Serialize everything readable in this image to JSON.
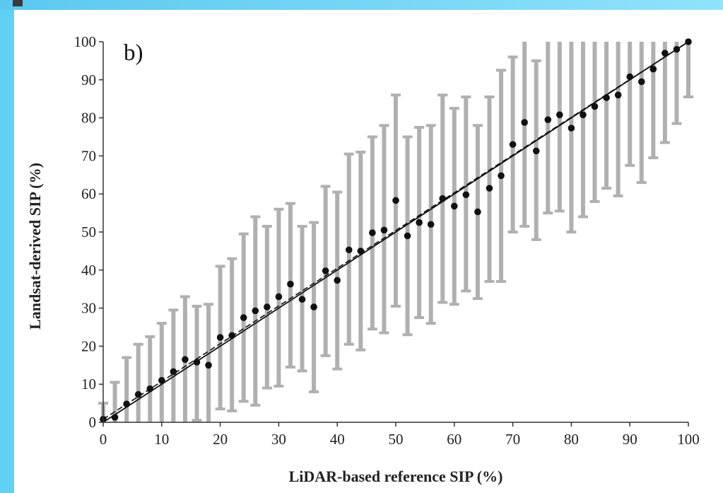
{
  "chart_data": {
    "type": "scatter",
    "panel_label": "b)",
    "xlabel": "LiDAR-based reference SIP (%)",
    "ylabel": "Landsat-derived SIP (%)",
    "xlim": [
      0,
      100
    ],
    "ylim": [
      0,
      100
    ],
    "x_ticks": [
      "0",
      "10",
      "20",
      "30",
      "40",
      "50",
      "60",
      "70",
      "80",
      "90",
      "100"
    ],
    "y_ticks": [
      "0",
      "10",
      "20",
      "30",
      "40",
      "50",
      "60",
      "70",
      "80",
      "90",
      "100"
    ],
    "grid": false,
    "points": [
      {
        "x": 0,
        "y": 0.8,
        "lo": 0,
        "hi": 5
      },
      {
        "x": 2,
        "y": 1.3,
        "lo": 0,
        "hi": 10.5
      },
      {
        "x": 4,
        "y": 4.8,
        "lo": 0,
        "hi": 17
      },
      {
        "x": 6,
        "y": 7.3,
        "lo": 0,
        "hi": 20.5
      },
      {
        "x": 8,
        "y": 8.8,
        "lo": 0,
        "hi": 22.5
      },
      {
        "x": 10,
        "y": 11,
        "lo": 0,
        "hi": 26
      },
      {
        "x": 12,
        "y": 13.3,
        "lo": 0,
        "hi": 29.5
      },
      {
        "x": 14,
        "y": 16.5,
        "lo": 0,
        "hi": 33
      },
      {
        "x": 16,
        "y": 15.8,
        "lo": 0.5,
        "hi": 30.5
      },
      {
        "x": 18,
        "y": 15,
        "lo": 0,
        "hi": 31
      },
      {
        "x": 20,
        "y": 22.3,
        "lo": 3.5,
        "hi": 41
      },
      {
        "x": 22,
        "y": 22.8,
        "lo": 3,
        "hi": 43
      },
      {
        "x": 24,
        "y": 27.5,
        "lo": 5.5,
        "hi": 49.5
      },
      {
        "x": 26,
        "y": 29.3,
        "lo": 4.5,
        "hi": 54
      },
      {
        "x": 28,
        "y": 30.3,
        "lo": 9,
        "hi": 51.5
      },
      {
        "x": 30,
        "y": 33,
        "lo": 9.5,
        "hi": 56
      },
      {
        "x": 32,
        "y": 36.3,
        "lo": 14.5,
        "hi": 57.5
      },
      {
        "x": 34,
        "y": 32.3,
        "lo": 13.5,
        "hi": 51.5
      },
      {
        "x": 36,
        "y": 30.3,
        "lo": 8,
        "hi": 52.5
      },
      {
        "x": 38,
        "y": 39.8,
        "lo": 17.5,
        "hi": 62
      },
      {
        "x": 40,
        "y": 37.3,
        "lo": 14,
        "hi": 60.5
      },
      {
        "x": 42,
        "y": 45.3,
        "lo": 20.5,
        "hi": 70.5
      },
      {
        "x": 44,
        "y": 45,
        "lo": 19,
        "hi": 71
      },
      {
        "x": 46,
        "y": 49.8,
        "lo": 24.5,
        "hi": 75
      },
      {
        "x": 48,
        "y": 50.5,
        "lo": 23.5,
        "hi": 78
      },
      {
        "x": 50,
        "y": 58.3,
        "lo": 30.5,
        "hi": 86
      },
      {
        "x": 52,
        "y": 49,
        "lo": 23,
        "hi": 75
      },
      {
        "x": 54,
        "y": 52.5,
        "lo": 27.5,
        "hi": 77.5
      },
      {
        "x": 56,
        "y": 52,
        "lo": 26,
        "hi": 78
      },
      {
        "x": 58,
        "y": 58.8,
        "lo": 31.5,
        "hi": 86
      },
      {
        "x": 60,
        "y": 56.8,
        "lo": 31,
        "hi": 82.5
      },
      {
        "x": 62,
        "y": 59.8,
        "lo": 34.5,
        "hi": 85.5
      },
      {
        "x": 64,
        "y": 55.3,
        "lo": 32.5,
        "hi": 78
      },
      {
        "x": 66,
        "y": 61.5,
        "lo": 37,
        "hi": 85.5
      },
      {
        "x": 68,
        "y": 64.8,
        "lo": 37,
        "hi": 92.5
      },
      {
        "x": 70,
        "y": 73,
        "lo": 50,
        "hi": 96
      },
      {
        "x": 72,
        "y": 78.8,
        "lo": 51.5,
        "hi": 100
      },
      {
        "x": 74,
        "y": 71.3,
        "lo": 48,
        "hi": 95
      },
      {
        "x": 76,
        "y": 79.5,
        "lo": 55,
        "hi": 100
      },
      {
        "x": 78,
        "y": 80.8,
        "lo": 55.5,
        "hi": 100
      },
      {
        "x": 80,
        "y": 77.3,
        "lo": 50,
        "hi": 100
      },
      {
        "x": 82,
        "y": 80.8,
        "lo": 54,
        "hi": 100
      },
      {
        "x": 84,
        "y": 83,
        "lo": 58,
        "hi": 100
      },
      {
        "x": 86,
        "y": 85.3,
        "lo": 61.5,
        "hi": 100
      },
      {
        "x": 88,
        "y": 86,
        "lo": 59.5,
        "hi": 100
      },
      {
        "x": 90,
        "y": 90.8,
        "lo": 67.5,
        "hi": 100
      },
      {
        "x": 92,
        "y": 89.5,
        "lo": 63,
        "hi": 100
      },
      {
        "x": 94,
        "y": 92.8,
        "lo": 69.5,
        "hi": 100
      },
      {
        "x": 96,
        "y": 97,
        "lo": 73.5,
        "hi": 100
      },
      {
        "x": 98,
        "y": 98,
        "lo": 78.5,
        "hi": 100
      },
      {
        "x": 100,
        "y": 100,
        "lo": 85.5,
        "hi": 100
      }
    ],
    "fit_line": {
      "x": [
        0,
        100
      ],
      "y": [
        0,
        100
      ]
    },
    "reference_line": {
      "x": [
        0,
        100
      ],
      "y": [
        0.8,
        100
      ],
      "style": "dashed"
    },
    "colors": {
      "points": "#111111",
      "error_bars": "#b0b0b0",
      "lines": "#111111"
    }
  }
}
